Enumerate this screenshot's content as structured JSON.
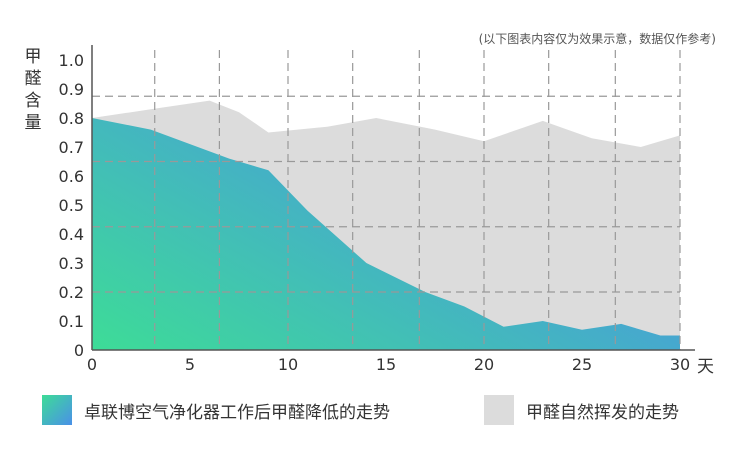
{
  "note": "(以下图表内容仅为效果示意，数据仅作参考)",
  "chart_data": {
    "type": "area",
    "ylabel": "甲醛含量",
    "xunit": "天",
    "xlim": [
      0,
      30
    ],
    "ylim": [
      0,
      1.0
    ],
    "xticks": [
      "0",
      "5",
      "10",
      "15",
      "20",
      "25",
      "30"
    ],
    "yticks": [
      "0",
      "0.1",
      "0.2",
      "0.3",
      "0.4",
      "0.5",
      "0.6",
      "0.7",
      "0.8",
      "0.9",
      "1.0"
    ],
    "grid": "dashed",
    "series": [
      {
        "name": "甲醛自然挥发的走势",
        "color": "#dcdcdc",
        "x": [
          0,
          3,
          6,
          7.5,
          9,
          12,
          14.5,
          17.5,
          20,
          23,
          25.5,
          28,
          30
        ],
        "y": [
          0.8,
          0.83,
          0.86,
          0.82,
          0.75,
          0.77,
          0.8,
          0.76,
          0.72,
          0.79,
          0.73,
          0.7,
          0.74
        ]
      },
      {
        "name": "卓联博空气净化器工作后甲醛降低的走势",
        "color_start": "#3ddc97",
        "color_end": "#4a90e8",
        "x": [
          0,
          3,
          7,
          9,
          11,
          14,
          17,
          19,
          21,
          23,
          25,
          27,
          29,
          30
        ],
        "y": [
          0.8,
          0.76,
          0.66,
          0.62,
          0.48,
          0.3,
          0.2,
          0.15,
          0.08,
          0.1,
          0.07,
          0.09,
          0.05,
          0.05
        ]
      }
    ]
  },
  "legend": {
    "item1": "卓联博空气净化器工作后甲醛降低的走势",
    "item2": "甲醛自然挥发的走势"
  }
}
